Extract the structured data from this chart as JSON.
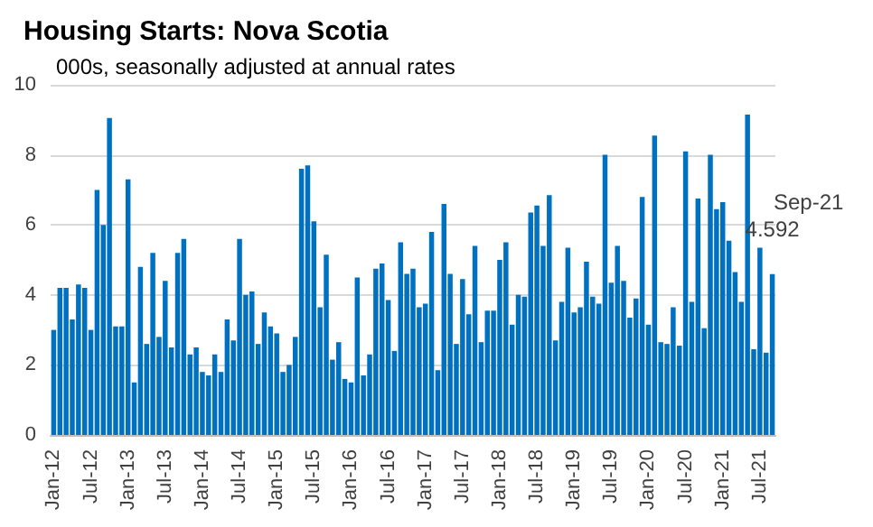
{
  "chart_data": {
    "type": "bar",
    "title": "Housing Starts: Nova Scotia",
    "subtitle": "000s, seasonally adjusted at annual rates",
    "categories": [
      "Jan-12",
      null,
      null,
      null,
      null,
      null,
      "Jul-12",
      null,
      null,
      null,
      null,
      null,
      "Jan-13",
      null,
      null,
      null,
      null,
      null,
      "Jul-13",
      null,
      null,
      null,
      null,
      null,
      "Jan-14",
      null,
      null,
      null,
      null,
      null,
      "Jul-14",
      null,
      null,
      null,
      null,
      null,
      "Jan-15",
      null,
      null,
      null,
      null,
      null,
      "Jul-15",
      null,
      null,
      null,
      null,
      null,
      "Jan-16",
      null,
      null,
      null,
      null,
      null,
      "Jul-16",
      null,
      null,
      null,
      null,
      null,
      "Jan-17",
      null,
      null,
      null,
      null,
      null,
      "Jul-17",
      null,
      null,
      null,
      null,
      null,
      "Jan-18",
      null,
      null,
      null,
      null,
      null,
      "Jul-18",
      null,
      null,
      null,
      null,
      null,
      "Jan-19",
      null,
      null,
      null,
      null,
      null,
      "Jul-19",
      null,
      null,
      null,
      null,
      null,
      "Jan-20",
      null,
      null,
      null,
      null,
      null,
      "Jul-20",
      null,
      null,
      null,
      null,
      null,
      "Jan-21",
      null,
      null,
      null,
      null,
      null,
      "Jul-21",
      null,
      null
    ],
    "values": [
      3.0,
      4.2,
      4.2,
      3.3,
      4.3,
      4.2,
      3.0,
      7.0,
      6.0,
      9.05,
      3.1,
      3.1,
      7.3,
      1.5,
      4.8,
      2.6,
      5.2,
      2.8,
      4.4,
      2.5,
      5.2,
      5.6,
      2.3,
      2.5,
      1.8,
      1.7,
      2.3,
      1.8,
      3.3,
      2.7,
      5.6,
      4.0,
      4.1,
      2.6,
      3.5,
      3.1,
      2.9,
      1.8,
      2.0,
      2.8,
      7.6,
      7.7,
      6.1,
      3.65,
      5.15,
      2.15,
      2.65,
      1.6,
      1.5,
      4.5,
      1.7,
      2.3,
      4.75,
      4.9,
      3.85,
      2.4,
      5.5,
      4.6,
      4.75,
      3.65,
      3.75,
      5.8,
      1.85,
      6.6,
      4.6,
      2.6,
      4.45,
      3.45,
      5.4,
      2.65,
      3.55,
      3.55,
      5.0,
      5.5,
      3.15,
      4.0,
      3.95,
      6.35,
      6.55,
      5.4,
      6.85,
      2.7,
      3.8,
      5.35,
      3.5,
      3.65,
      4.95,
      3.95,
      3.75,
      8.0,
      4.35,
      5.4,
      4.4,
      3.35,
      3.9,
      6.8,
      3.15,
      8.55,
      2.65,
      2.6,
      3.65,
      2.55,
      8.1,
      3.8,
      6.75,
      3.05,
      8.0,
      6.45,
      6.65,
      5.55,
      4.65,
      3.8,
      9.15,
      2.45,
      5.35,
      2.35,
      4.592
    ],
    "value_labels": [
      null,
      null,
      null,
      null,
      null,
      null,
      null,
      null,
      null,
      null,
      null,
      null,
      null,
      null,
      null,
      null,
      null,
      null,
      null,
      null,
      null,
      null,
      null,
      null,
      null,
      null,
      null,
      null,
      null,
      null,
      null,
      null,
      null,
      null,
      null,
      null,
      null,
      null,
      null,
      null,
      null,
      null,
      null,
      null,
      null,
      null,
      null,
      null,
      null,
      null,
      null,
      null,
      null,
      null,
      null,
      null,
      null,
      null,
      null,
      null,
      null,
      null,
      null,
      null,
      null,
      null,
      null,
      null,
      null,
      null,
      null,
      null,
      null,
      null,
      null,
      null,
      null,
      null,
      null,
      null,
      null,
      null,
      null,
      null,
      null,
      null,
      null,
      null,
      null,
      null,
      null,
      null,
      null,
      null,
      null,
      null,
      null,
      null,
      null,
      null,
      null,
      null,
      null,
      null,
      null,
      null,
      null,
      null,
      null,
      null,
      null,
      null,
      null,
      null,
      null,
      null,
      "4.592"
    ],
    "annotations": [
      "Sep-21"
    ],
    "color": "#0070c0",
    "ylim": [
      0,
      10
    ],
    "yticks": [
      0,
      2,
      4,
      6,
      8,
      10
    ],
    "grid": "y"
  }
}
